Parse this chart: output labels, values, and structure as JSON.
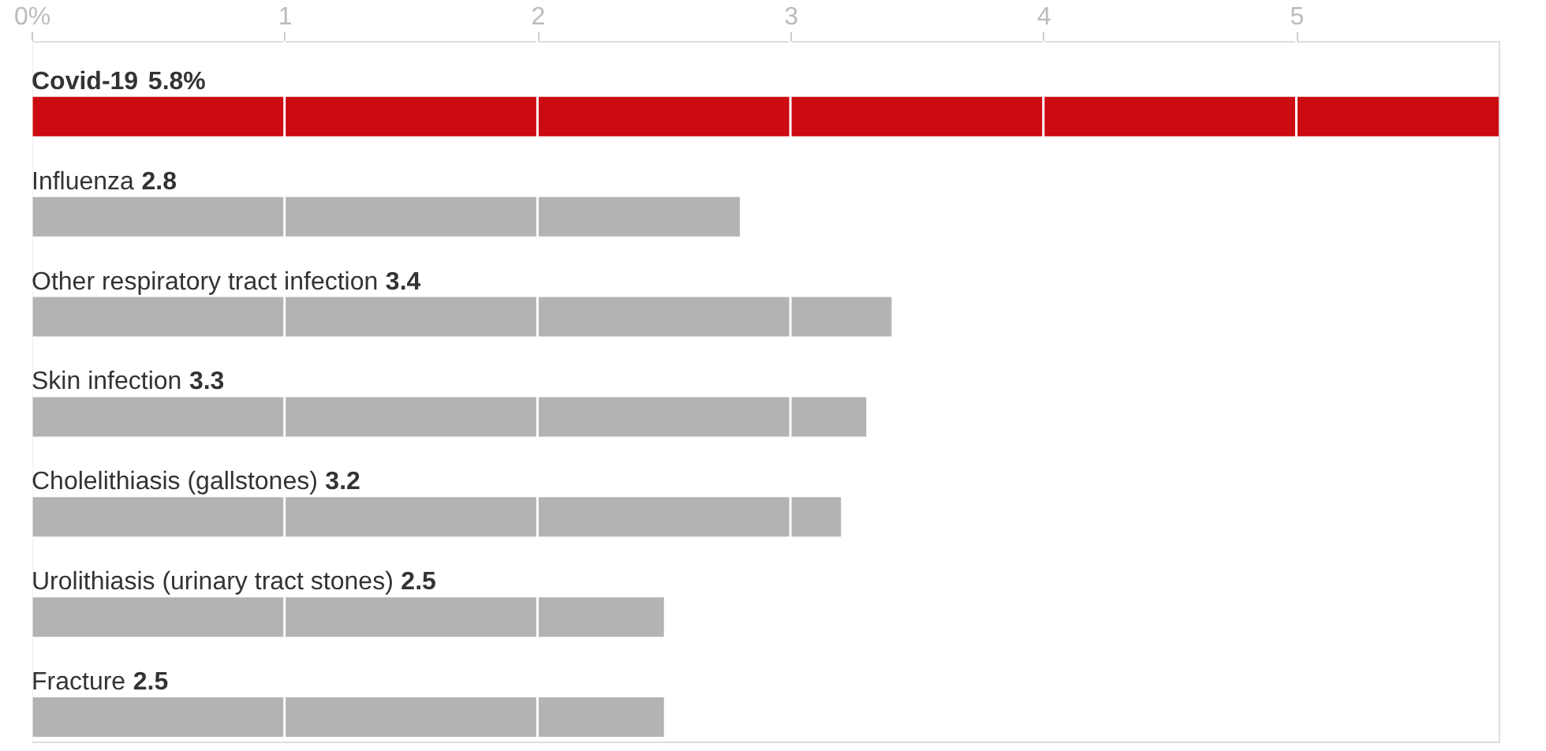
{
  "chart_data": {
    "type": "bar",
    "orientation": "horizontal",
    "categories": [
      "Covid-19",
      "Influenza",
      "Other respiratory tract infection",
      "Skin infection",
      "Cholelithiasis (gallstones)",
      "Urolithiasis (urinary tract stones)",
      "Fracture"
    ],
    "values": [
      5.8,
      2.8,
      3.4,
      3.3,
      3.2,
      2.5,
      2.5
    ],
    "value_labels": [
      "5.8%",
      "2.8",
      "3.4",
      "3.3",
      "3.2",
      "2.5",
      "2.5"
    ],
    "colors": [
      "#cc0a11",
      "#b3b3b3",
      "#b3b3b3",
      "#b3b3b3",
      "#b3b3b3",
      "#b3b3b3",
      "#b3b3b3"
    ],
    "xlim": [
      0,
      5.8
    ],
    "xticks": [
      {
        "value": 0,
        "label": "0%"
      },
      1,
      2,
      3,
      4,
      5
    ],
    "grid": "x"
  }
}
